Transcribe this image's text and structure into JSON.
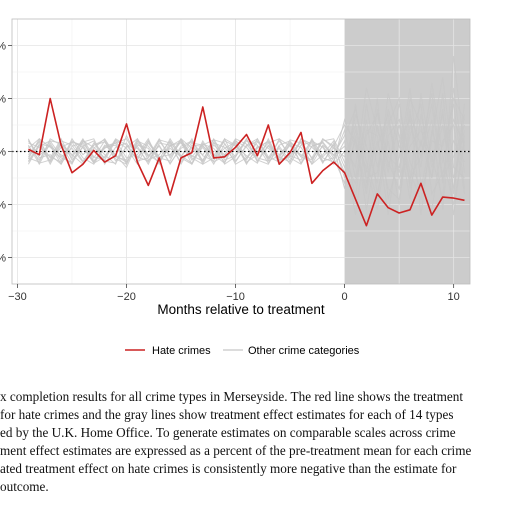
{
  "chart_data": {
    "type": "line",
    "xlabel": "Months relative to treatment",
    "ylabel": "",
    "xlim": [
      -30.5,
      11.5
    ],
    "ylim": [
      -125,
      125
    ],
    "x_ticks": [
      -30,
      -20,
      -10,
      0,
      10
    ],
    "x_tick_labels": [
      "−30",
      "−20",
      "−10",
      "0",
      "10"
    ],
    "y_ticks": [
      -100,
      -50,
      0,
      50,
      100
    ],
    "y_tick_labels": [
      "%",
      "%",
      "%",
      "%",
      "%"
    ],
    "grid": true,
    "reference_line": 0,
    "shaded_region": [
      0,
      11.5
    ],
    "legend_position": "bottom",
    "colors": {
      "hate": "#cc2222",
      "other": "#c8c8c8",
      "shade": "#cccccc",
      "panel_border": "#bdbdbd"
    },
    "hate_series": {
      "name": "Hate crimes",
      "x": [
        -29,
        -28,
        -27,
        -26,
        -25,
        -24,
        -23,
        -22,
        -21,
        -20,
        -19,
        -18,
        -17,
        -16,
        -15,
        -14,
        -13,
        -12,
        -11,
        -10,
        -9,
        -8,
        -7,
        -6,
        -5,
        -4,
        -3,
        -2,
        -1,
        0,
        1,
        2,
        3,
        4,
        5,
        6,
        7,
        8,
        9,
        10,
        11
      ],
      "values": [
        2,
        -3,
        50,
        6,
        -20,
        -12,
        1,
        -10,
        -4,
        26,
        -10,
        -32,
        -6,
        -41,
        -6,
        -1,
        42,
        -6,
        -5,
        4,
        16,
        -4,
        25,
        -12,
        -1,
        18,
        -30,
        -18,
        -10,
        -20,
        -45,
        -70,
        -40,
        -53,
        -58,
        -55,
        -30,
        -60,
        -43,
        -44,
        -46
      ]
    },
    "other_series": {
      "name": "Other crime categories",
      "x": [
        -29,
        -28,
        -27,
        -26,
        -25,
        -24,
        -23,
        -22,
        -21,
        -20,
        -19,
        -18,
        -17,
        -16,
        -15,
        -14,
        -13,
        -12,
        -11,
        -10,
        -9,
        -8,
        -7,
        -6,
        -5,
        -4,
        -3,
        -2,
        -1,
        0,
        1,
        2,
        3,
        4,
        5,
        6,
        7,
        8,
        9,
        10,
        11
      ],
      "lines": [
        [
          5,
          -8,
          10,
          -5,
          3,
          -10,
          8,
          -3,
          -12,
          15,
          -6,
          10,
          -8,
          3,
          -5,
          12,
          -10,
          6,
          -3,
          8,
          -12,
          5,
          -6,
          10,
          -4,
          -8,
          12,
          -5,
          6,
          -20,
          10,
          -35,
          40,
          -15,
          25,
          -30,
          55,
          -10,
          35,
          -25,
          20
        ],
        [
          -5,
          10,
          -6,
          12,
          -8,
          4,
          -10,
          6,
          -3,
          -15,
          8,
          -5,
          12,
          -6,
          10,
          -8,
          4,
          -12,
          7,
          -5,
          12,
          -10,
          6,
          -3,
          9,
          -11,
          5,
          8,
          -6,
          20,
          -25,
          30,
          -40,
          10,
          -50,
          25,
          -5,
          45,
          -30,
          60,
          -20
        ],
        [
          10,
          -4,
          6,
          -12,
          5,
          8,
          -6,
          10,
          -9,
          4,
          12,
          -8,
          -3,
          10,
          -6,
          -12,
          8,
          -4,
          12,
          -9,
          5,
          10,
          -7,
          3,
          -12,
          6,
          9,
          -10,
          4,
          -35,
          15,
          -55,
          5,
          35,
          -20,
          40,
          -60,
          20,
          -10,
          30,
          5
        ],
        [
          -12,
          6,
          -9,
          8,
          -4,
          12,
          -5,
          -8,
          10,
          -6,
          -3,
          12,
          -10,
          6,
          8,
          -4,
          -9,
          12,
          -6,
          3,
          -8,
          12,
          -5,
          -10,
          8,
          4,
          -12,
          6,
          -3,
          15,
          40,
          -10,
          -45,
          25,
          50,
          -35,
          10,
          -25,
          55,
          -40,
          35
        ],
        [
          3,
          12,
          -10,
          4,
          9,
          -6,
          -12,
          5,
          8,
          -10,
          6,
          3,
          -12,
          9,
          -5,
          8,
          6,
          -10,
          -4,
          12,
          7,
          -6,
          -9,
          12,
          5,
          -3,
          -8,
          10,
          12,
          -10,
          -30,
          20,
          15,
          -60,
          10,
          30,
          -15,
          65,
          -5,
          -50,
          10
        ],
        [
          -6,
          -10,
          12,
          6,
          -11,
          5,
          10,
          -12,
          4,
          8,
          -9,
          -6,
          10,
          -4,
          12,
          3,
          -8,
          9,
          -12,
          -5,
          10,
          6,
          -11,
          5,
          -9,
          12,
          4,
          -6,
          -10,
          30,
          5,
          -40,
          25,
          -20,
          45,
          -10,
          -35,
          15,
          70,
          -15,
          -25
        ],
        [
          8,
          4,
          -5,
          -10,
          12,
          -3,
          6,
          9,
          -7,
          -12,
          10,
          -4,
          5,
          -11,
          3,
          9,
          -12,
          -6,
          10,
          5,
          -4,
          -11,
          12,
          -8,
          6,
          -5,
          -10,
          12,
          3,
          -5,
          25,
          -20,
          50,
          -45,
          -5,
          60,
          -30,
          -55,
          10,
          25,
          -40
        ],
        [
          -9,
          7,
          5,
          -3,
          -12,
          10,
          4,
          -6,
          11,
          3,
          -12,
          8,
          -6,
          -9,
          12,
          -5,
          7,
          3,
          -10,
          11,
          -6,
          4,
          9,
          -12,
          -3,
          10,
          -7,
          5,
          -9,
          10,
          -45,
          45,
          -15,
          30,
          -25,
          5,
          20,
          -5,
          -45,
          90,
          0
        ],
        [
          12,
          -11,
          -8,
          10,
          6,
          -9,
          3,
          12,
          -4,
          -10,
          5,
          -12,
          8,
          6,
          -10,
          4,
          -3,
          11,
          8,
          -12,
          -6,
          9,
          3,
          -5,
          -10,
          12,
          7,
          -11,
          8,
          -25,
          35,
          5,
          -30,
          55,
          15,
          -45,
          35,
          -15,
          25,
          -35,
          45
        ],
        [
          -3,
          9,
          -12,
          7,
          -6,
          11,
          -9,
          4,
          6,
          -12,
          10,
          5,
          -8,
          12,
          -4,
          -11,
          10,
          -7,
          3,
          9,
          -10,
          -3,
          8,
          12,
          -6,
          -12,
          5,
          9,
          -4,
          5,
          -15,
          60,
          20,
          -10,
          -35,
          15,
          45,
          -40,
          -20,
          10,
          -10
        ],
        [
          6,
          -12,
          8,
          -9,
          10,
          4,
          -11,
          -5,
          12,
          6,
          -8,
          10,
          -5,
          -3,
          9,
          -12,
          6,
          11,
          -8,
          -4,
          12,
          -9,
          5,
          -6,
          11,
          8,
          -12,
          -3,
          10,
          -15,
          20,
          -25,
          -20,
          40,
          5,
          -25,
          -5,
          30,
          -55,
          50,
          30
        ],
        [
          -10,
          5,
          10,
          8,
          -3,
          -12,
          6,
          11,
          -5,
          -8,
          12,
          -3,
          -10,
          5,
          11,
          -6,
          -12,
          8,
          4,
          -10,
          6,
          12,
          -9,
          -4,
          7,
          -11,
          10,
          4,
          -12,
          0,
          -60,
          15,
          35,
          -5,
          -15,
          50,
          25,
          -25,
          40,
          -60,
          15
        ],
        [
          11,
          -6,
          -3,
          -12,
          9,
          6,
          -10,
          3,
          8,
          12,
          -5,
          -9,
          6,
          -12,
          5,
          10,
          -4,
          -9,
          12,
          6,
          -11,
          3,
          10,
          -8,
          -5,
          9,
          -6,
          12,
          5,
          25,
          10,
          -15,
          -55,
          15,
          30,
          -20,
          -45,
          10,
          5,
          45,
          -35
        ],
        [
          -7,
          12,
          4,
          -6,
          -10,
          9,
          12,
          -9,
          -11,
          5,
          3,
          -10,
          11,
          8,
          -12,
          6,
          5,
          -3,
          -11,
          10,
          4,
          -8,
          -12,
          6,
          10,
          -5,
          11,
          -9,
          -6,
          -30,
          45,
          -30,
          10,
          -35,
          -45,
          35,
          5,
          55,
          -25,
          -5,
          25
        ]
      ]
    },
    "legend": [
      "Hate crimes",
      "Other crime categories"
    ],
    "caption_lines": [
      "x completion results for all crime types in Merseyside.  The red line shows the treatment",
      "for hate crimes and the gray lines show treatment effect estimates for each of 14 types",
      "ed by the U.K. Home Office.  To generate estimates on comparable scales across crime",
      "ment effect estimates are expressed as a percent of the pre-treatment mean for each crime",
      "ated treatment effect on hate crimes is consistently more negative than the estimate for",
      " outcome."
    ]
  }
}
